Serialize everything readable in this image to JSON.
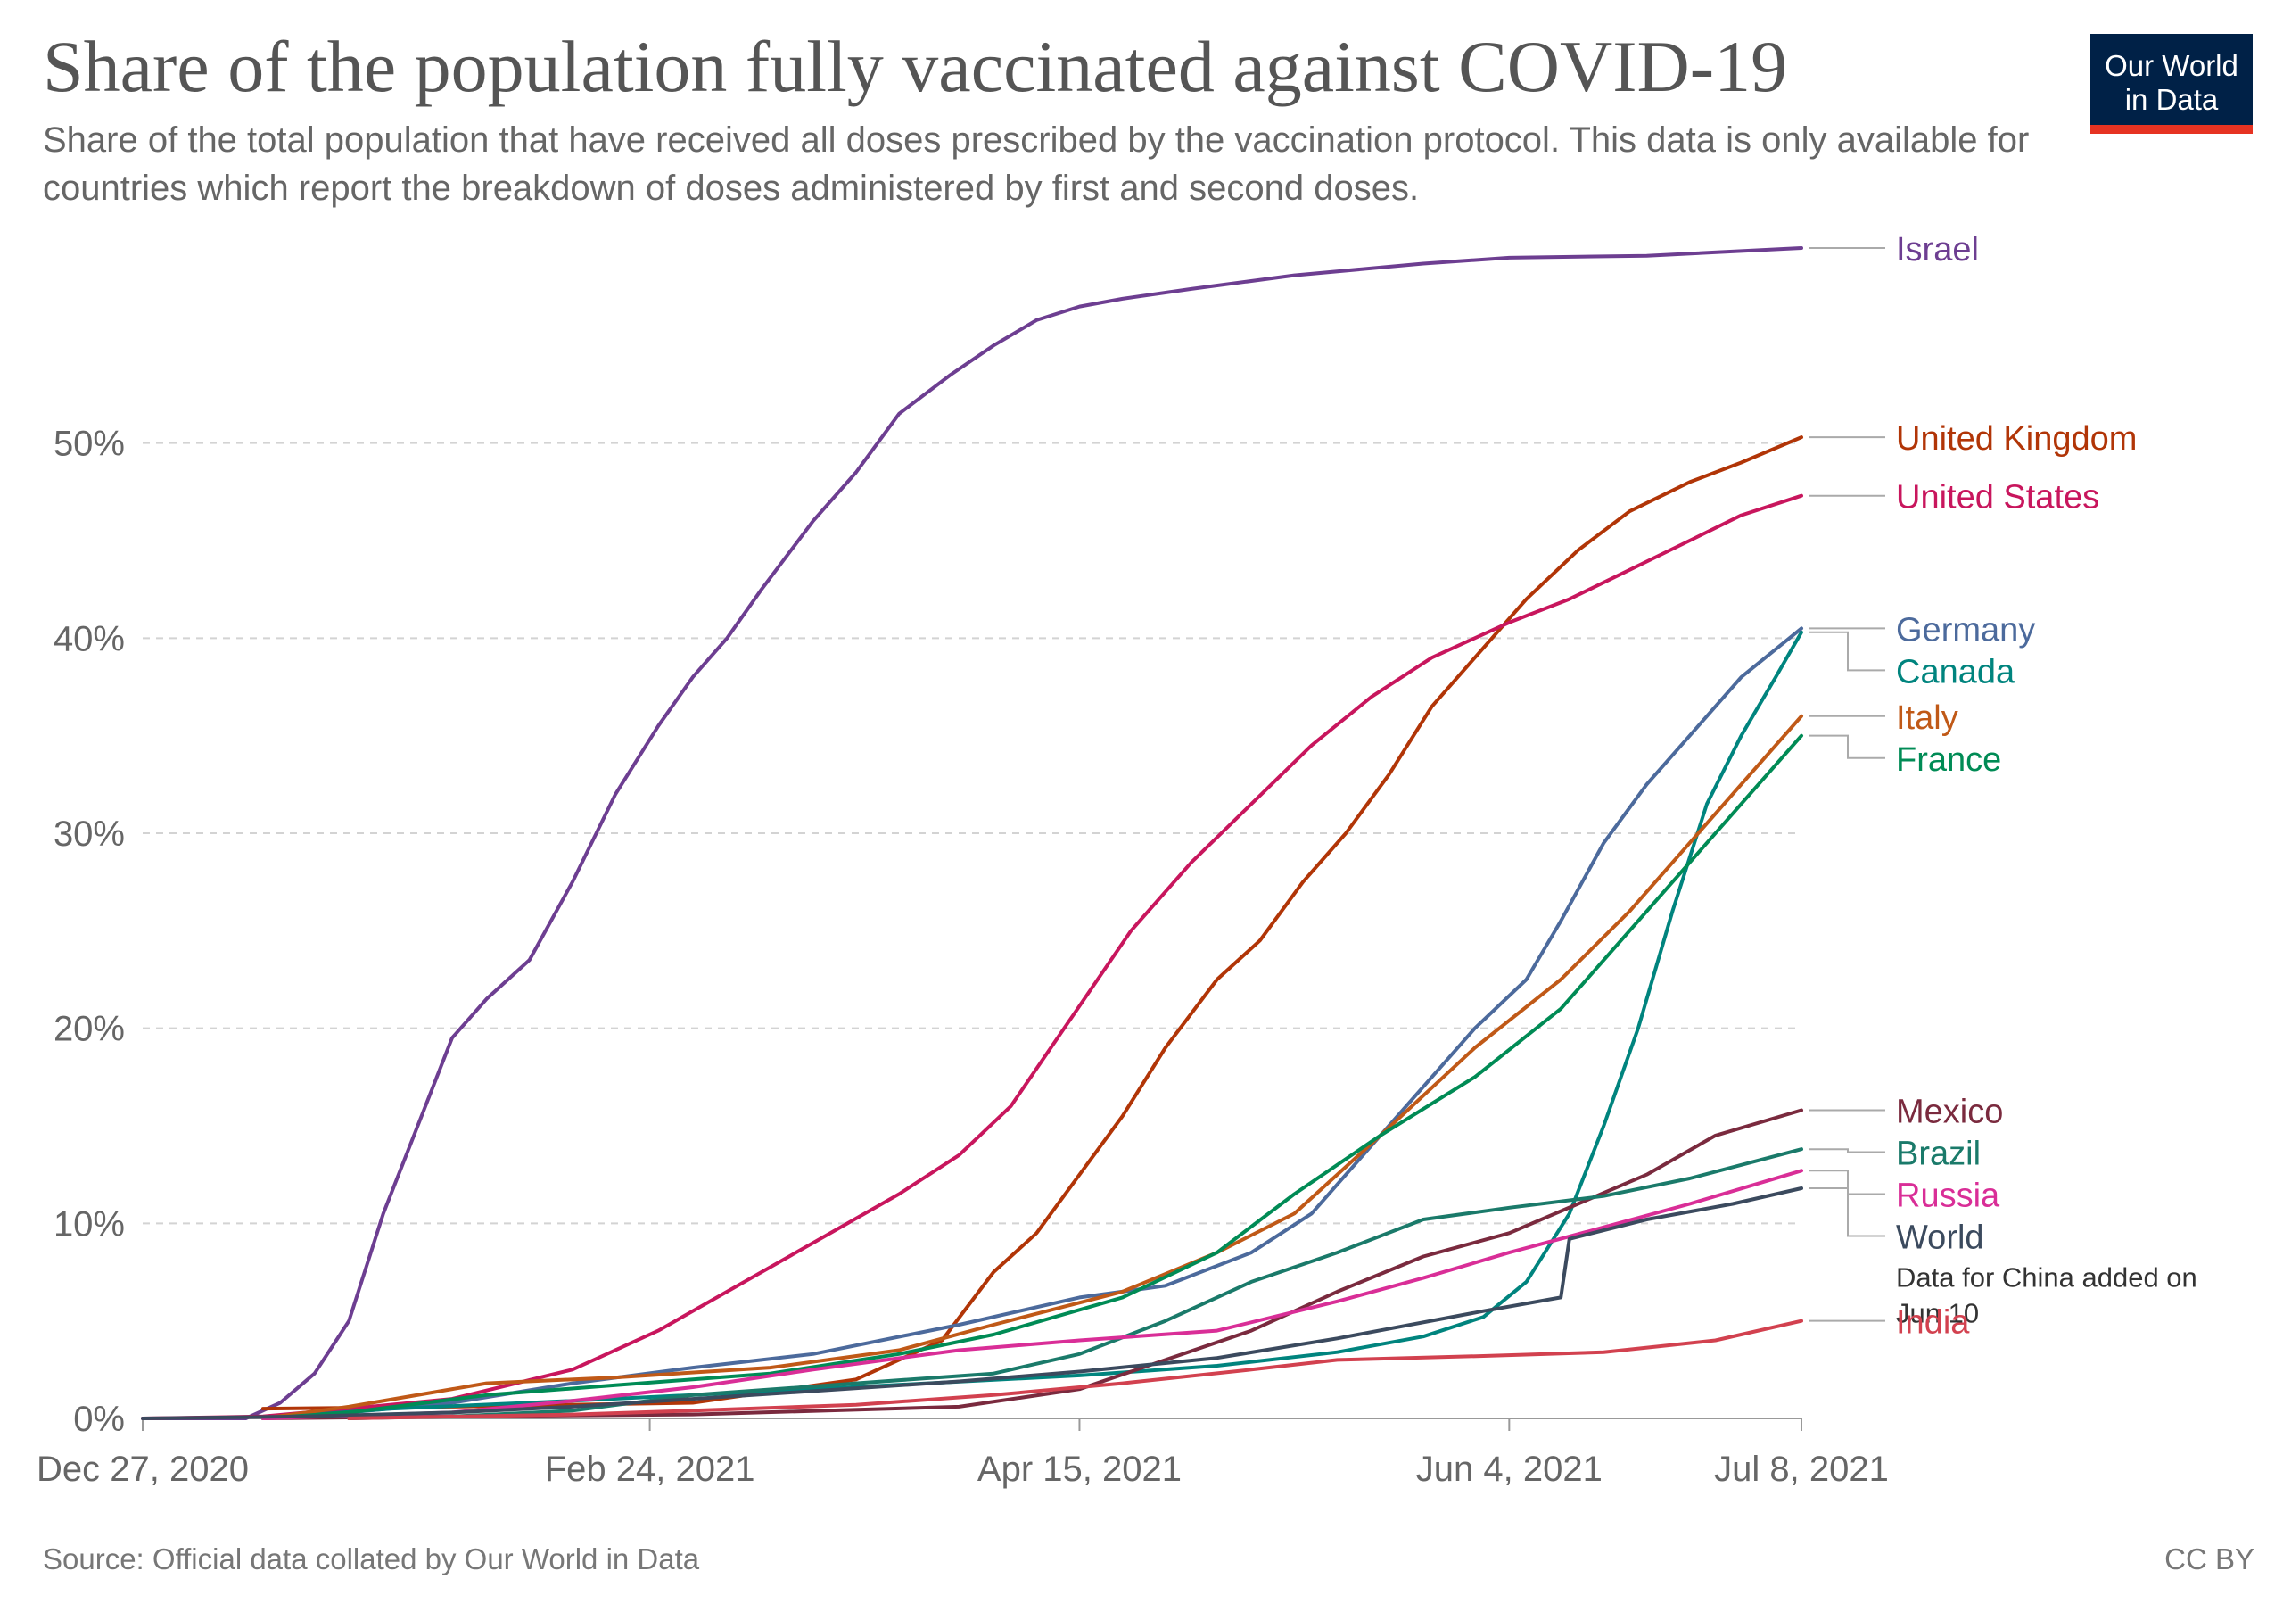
{
  "header": {
    "title": "Share of the population fully vaccinated against COVID-19",
    "subtitle": "Share of the total population that have received all doses prescribed by the vaccination protocol. This data is only available for countries which report the breakdown of doses administered by first and second doses."
  },
  "logo": {
    "line1": "Our World",
    "line2": "in Data"
  },
  "footer": {
    "source": "Source: Official data collated by Our World in Data",
    "license": "CC BY"
  },
  "chart_data": {
    "type": "line",
    "x_axis": {
      "ticks": [
        "Dec 27, 2020",
        "Feb 24, 2021",
        "Apr 15, 2021",
        "Jun 4, 2021",
        "Jul 8, 2021"
      ],
      "range": [
        "2020-12-27",
        "2021-07-08"
      ]
    },
    "y_axis": {
      "ticks": [
        "0%",
        "10%",
        "20%",
        "30%",
        "40%",
        "50%"
      ],
      "range": [
        0,
        60
      ],
      "unit": "%"
    },
    "grid": {
      "horizontal": true,
      "vertical": false,
      "style": "dashed"
    },
    "legend_placement": "right end labels",
    "series": [
      {
        "name": "Israel",
        "color": "#6d3e91",
        "points": [
          [
            "2020-12-27",
            0
          ],
          [
            "2021-01-08",
            0
          ],
          [
            "2021-01-12",
            0.8
          ],
          [
            "2021-01-16",
            2.3
          ],
          [
            "2021-01-20",
            5
          ],
          [
            "2021-01-24",
            10.5
          ],
          [
            "2021-01-28",
            15
          ],
          [
            "2021-02-01",
            19.5
          ],
          [
            "2021-02-05",
            21.5
          ],
          [
            "2021-02-10",
            23.5
          ],
          [
            "2021-02-15",
            27.5
          ],
          [
            "2021-02-20",
            32
          ],
          [
            "2021-02-25",
            35.5
          ],
          [
            "2021-03-01",
            38
          ],
          [
            "2021-03-05",
            40
          ],
          [
            "2021-03-09",
            42.5
          ],
          [
            "2021-03-15",
            46
          ],
          [
            "2021-03-20",
            48.5
          ],
          [
            "2021-03-25",
            51.5
          ],
          [
            "2021-03-31",
            53.5
          ],
          [
            "2021-04-05",
            55
          ],
          [
            "2021-04-10",
            56.3
          ],
          [
            "2021-04-15",
            57
          ],
          [
            "2021-04-20",
            57.4
          ],
          [
            "2021-04-28",
            57.9
          ],
          [
            "2021-05-10",
            58.6
          ],
          [
            "2021-05-25",
            59.2
          ],
          [
            "2021-06-04",
            59.5
          ],
          [
            "2021-06-20",
            59.6
          ],
          [
            "2021-07-08",
            60
          ]
        ]
      },
      {
        "name": "United Kingdom",
        "color": "#b13507",
        "points": [
          [
            "2021-01-10",
            0.5
          ],
          [
            "2021-02-01",
            0.6
          ],
          [
            "2021-03-01",
            0.8
          ],
          [
            "2021-03-20",
            2
          ],
          [
            "2021-03-30",
            4
          ],
          [
            "2021-04-05",
            7.5
          ],
          [
            "2021-04-10",
            9.5
          ],
          [
            "2021-04-15",
            12.5
          ],
          [
            "2021-04-20",
            15.5
          ],
          [
            "2021-04-25",
            19
          ],
          [
            "2021-05-01",
            22.5
          ],
          [
            "2021-05-06",
            24.5
          ],
          [
            "2021-05-11",
            27.5
          ],
          [
            "2021-05-16",
            30
          ],
          [
            "2021-05-21",
            33
          ],
          [
            "2021-05-26",
            36.5
          ],
          [
            "2021-06-01",
            39.5
          ],
          [
            "2021-06-06",
            42
          ],
          [
            "2021-06-12",
            44.5
          ],
          [
            "2021-06-18",
            46.5
          ],
          [
            "2021-06-25",
            48
          ],
          [
            "2021-07-01",
            49
          ],
          [
            "2021-07-08",
            50.3
          ]
        ]
      },
      {
        "name": "United States",
        "color": "#c8165d",
        "points": [
          [
            "2020-12-27",
            0
          ],
          [
            "2021-01-10",
            0.1
          ],
          [
            "2021-01-20",
            0.5
          ],
          [
            "2021-02-01",
            1
          ],
          [
            "2021-02-15",
            2.5
          ],
          [
            "2021-02-25",
            4.5
          ],
          [
            "2021-03-05",
            6.5
          ],
          [
            "2021-03-15",
            9
          ],
          [
            "2021-03-25",
            11.5
          ],
          [
            "2021-04-01",
            13.5
          ],
          [
            "2021-04-07",
            16
          ],
          [
            "2021-04-14",
            20.5
          ],
          [
            "2021-04-21",
            25
          ],
          [
            "2021-04-28",
            28.5
          ],
          [
            "2021-05-05",
            31.5
          ],
          [
            "2021-05-12",
            34.5
          ],
          [
            "2021-05-19",
            37
          ],
          [
            "2021-05-26",
            39
          ],
          [
            "2021-06-04",
            40.8
          ],
          [
            "2021-06-11",
            42
          ],
          [
            "2021-06-18",
            43.5
          ],
          [
            "2021-06-25",
            45
          ],
          [
            "2021-07-01",
            46.3
          ],
          [
            "2021-07-08",
            47.3
          ]
        ]
      },
      {
        "name": "Germany",
        "color": "#4c6a9c",
        "points": [
          [
            "2021-01-10",
            0
          ],
          [
            "2021-01-20",
            0.3
          ],
          [
            "2021-02-01",
            0.8
          ],
          [
            "2021-02-15",
            1.8
          ],
          [
            "2021-03-01",
            2.6
          ],
          [
            "2021-03-15",
            3.3
          ],
          [
            "2021-04-01",
            4.8
          ],
          [
            "2021-04-15",
            6.2
          ],
          [
            "2021-04-25",
            6.8
          ],
          [
            "2021-05-05",
            8.5
          ],
          [
            "2021-05-12",
            10.5
          ],
          [
            "2021-05-18",
            13.5
          ],
          [
            "2021-05-24",
            16.5
          ],
          [
            "2021-05-31",
            20
          ],
          [
            "2021-06-06",
            22.5
          ],
          [
            "2021-06-10",
            25.5
          ],
          [
            "2021-06-15",
            29.5
          ],
          [
            "2021-06-20",
            32.5
          ],
          [
            "2021-06-25",
            35
          ],
          [
            "2021-07-01",
            38
          ],
          [
            "2021-07-08",
            40.5
          ]
        ]
      },
      {
        "name": "Canada",
        "color": "#00847e",
        "points": [
          [
            "2021-01-10",
            0
          ],
          [
            "2021-01-25",
            0.5
          ],
          [
            "2021-02-15",
            0.9
          ],
          [
            "2021-03-15",
            1.5
          ],
          [
            "2021-04-15",
            2.2
          ],
          [
            "2021-05-01",
            2.7
          ],
          [
            "2021-05-15",
            3.4
          ],
          [
            "2021-05-25",
            4.2
          ],
          [
            "2021-06-01",
            5.2
          ],
          [
            "2021-06-06",
            7
          ],
          [
            "2021-06-11",
            10.5
          ],
          [
            "2021-06-15",
            15
          ],
          [
            "2021-06-19",
            20
          ],
          [
            "2021-06-23",
            26
          ],
          [
            "2021-06-27",
            31.5
          ],
          [
            "2021-07-01",
            35
          ],
          [
            "2021-07-05",
            38
          ],
          [
            "2021-07-08",
            40.3
          ]
        ]
      },
      {
        "name": "Italy",
        "color": "#c05917",
        "points": [
          [
            "2021-01-10",
            0
          ],
          [
            "2021-01-20",
            0.6
          ],
          [
            "2021-02-05",
            1.8
          ],
          [
            "2021-02-20",
            2.1
          ],
          [
            "2021-03-10",
            2.6
          ],
          [
            "2021-03-25",
            3.5
          ],
          [
            "2021-04-05",
            4.8
          ],
          [
            "2021-04-20",
            6.5
          ],
          [
            "2021-05-01",
            8.5
          ],
          [
            "2021-05-10",
            10.5
          ],
          [
            "2021-05-20",
            14.5
          ],
          [
            "2021-05-31",
            19
          ],
          [
            "2021-06-10",
            22.5
          ],
          [
            "2021-06-18",
            26
          ],
          [
            "2021-06-25",
            29.5
          ],
          [
            "2021-07-01",
            32.5
          ],
          [
            "2021-07-08",
            36
          ]
        ]
      },
      {
        "name": "France",
        "color": "#008b55",
        "points": [
          [
            "2021-01-10",
            0
          ],
          [
            "2021-01-20",
            0.3
          ],
          [
            "2021-02-05",
            1.2
          ],
          [
            "2021-02-20",
            1.7
          ],
          [
            "2021-03-10",
            2.3
          ],
          [
            "2021-03-25",
            3.3
          ],
          [
            "2021-04-05",
            4.3
          ],
          [
            "2021-04-20",
            6.2
          ],
          [
            "2021-05-01",
            8.5
          ],
          [
            "2021-05-10",
            11.5
          ],
          [
            "2021-05-20",
            14.5
          ],
          [
            "2021-05-31",
            17.5
          ],
          [
            "2021-06-10",
            21
          ],
          [
            "2021-06-18",
            25
          ],
          [
            "2021-06-25",
            28.5
          ],
          [
            "2021-07-01",
            31.5
          ],
          [
            "2021-07-08",
            35
          ]
        ]
      },
      {
        "name": "Mexico",
        "color": "#7a2a3e",
        "points": [
          [
            "2021-01-10",
            0
          ],
          [
            "2021-02-01",
            0.1
          ],
          [
            "2021-03-01",
            0.2
          ],
          [
            "2021-04-01",
            0.6
          ],
          [
            "2021-04-15",
            1.5
          ],
          [
            "2021-04-25",
            3
          ],
          [
            "2021-05-05",
            4.5
          ],
          [
            "2021-05-15",
            6.5
          ],
          [
            "2021-05-25",
            8.3
          ],
          [
            "2021-06-04",
            9.5
          ],
          [
            "2021-06-12",
            11
          ],
          [
            "2021-06-20",
            12.5
          ],
          [
            "2021-06-28",
            14.5
          ],
          [
            "2021-07-08",
            15.8
          ]
        ]
      },
      {
        "name": "Brazil",
        "color": "#1a7a6a",
        "points": [
          [
            "2021-01-20",
            0
          ],
          [
            "2021-02-01",
            0.1
          ],
          [
            "2021-02-15",
            0.4
          ],
          [
            "2021-03-01",
            1.2
          ],
          [
            "2021-03-20",
            1.8
          ],
          [
            "2021-04-05",
            2.3
          ],
          [
            "2021-04-15",
            3.3
          ],
          [
            "2021-04-25",
            5
          ],
          [
            "2021-05-05",
            7
          ],
          [
            "2021-05-15",
            8.5
          ],
          [
            "2021-05-25",
            10.2
          ],
          [
            "2021-06-04",
            10.8
          ],
          [
            "2021-06-15",
            11.4
          ],
          [
            "2021-06-25",
            12.3
          ],
          [
            "2021-07-08",
            13.8
          ]
        ]
      },
      {
        "name": "Russia",
        "color": "#d92e97",
        "points": [
          [
            "2021-01-10",
            0
          ],
          [
            "2021-02-01",
            0.3
          ],
          [
            "2021-02-15",
            0.9
          ],
          [
            "2021-03-01",
            1.6
          ],
          [
            "2021-03-15",
            2.5
          ],
          [
            "2021-04-01",
            3.5
          ],
          [
            "2021-04-15",
            4
          ],
          [
            "2021-05-01",
            4.5
          ],
          [
            "2021-05-15",
            6
          ],
          [
            "2021-05-25",
            7.2
          ],
          [
            "2021-06-04",
            8.5
          ],
          [
            "2021-06-15",
            9.8
          ],
          [
            "2021-06-25",
            11
          ],
          [
            "2021-07-08",
            12.7
          ]
        ]
      },
      {
        "name": "World",
        "color": "#3b4a5e",
        "points": [
          [
            "2020-12-27",
            0
          ],
          [
            "2021-01-15",
            0.1
          ],
          [
            "2021-02-01",
            0.3
          ],
          [
            "2021-02-15",
            0.6
          ],
          [
            "2021-03-01",
            1
          ],
          [
            "2021-03-15",
            1.4
          ],
          [
            "2021-04-01",
            1.9
          ],
          [
            "2021-04-15",
            2.4
          ],
          [
            "2021-05-01",
            3.1
          ],
          [
            "2021-05-15",
            4.1
          ],
          [
            "2021-06-01",
            5.5
          ],
          [
            "2021-06-10",
            6.2
          ],
          [
            "2021-06-11",
            9.2
          ],
          [
            "2021-06-20",
            10.2
          ],
          [
            "2021-06-30",
            11
          ],
          [
            "2021-07-08",
            11.8
          ]
        ]
      },
      {
        "name": "India",
        "color": "#d2414f",
        "points": [
          [
            "2021-01-20",
            0
          ],
          [
            "2021-02-15",
            0.2
          ],
          [
            "2021-03-01",
            0.4
          ],
          [
            "2021-03-20",
            0.7
          ],
          [
            "2021-04-05",
            1.2
          ],
          [
            "2021-04-20",
            1.8
          ],
          [
            "2021-05-05",
            2.5
          ],
          [
            "2021-05-15",
            3
          ],
          [
            "2021-06-01",
            3.2
          ],
          [
            "2021-06-15",
            3.4
          ],
          [
            "2021-06-28",
            4
          ],
          [
            "2021-07-08",
            5
          ]
        ]
      }
    ],
    "annotations": [
      {
        "series": "World",
        "lines": [
          "Data for China added on",
          "Jun 10"
        ]
      }
    ]
  }
}
